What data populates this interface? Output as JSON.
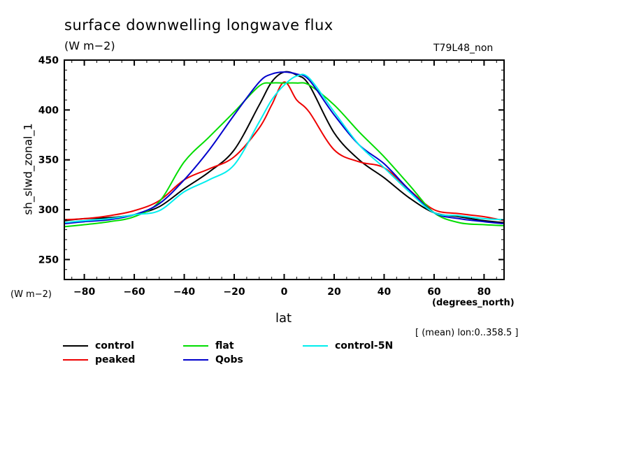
{
  "header": {
    "title": "surface downwelling longwave flux",
    "units": "(W m−2)",
    "run_label": "T79L48_non"
  },
  "axes": {
    "ylabel": "sh_slwd_zonal_1",
    "y_units": "(W m−2)",
    "xlabel": "lat",
    "x_units": "(degrees_north)",
    "region_note": "[ (mean) lon:0..358.5 ]"
  },
  "chart_data": {
    "type": "line",
    "title": "surface downwelling longwave flux",
    "subtitle": "(W m-2)",
    "xlabel": "lat",
    "ylabel": "sh_slwd_zonal_1",
    "xlim": [
      -88,
      88
    ],
    "ylim": [
      230,
      450
    ],
    "xticks": [
      -80,
      -60,
      -40,
      -20,
      0,
      20,
      40,
      60,
      80
    ],
    "xtick_labels": [
      "−80",
      "−60",
      "−40",
      "−20",
      "0",
      "20",
      "40",
      "60",
      "80"
    ],
    "yticks": [
      250,
      300,
      350,
      400,
      450
    ],
    "ytick_labels": [
      "250",
      "300",
      "350",
      "400",
      "450"
    ],
    "grid": false,
    "legend_position": "bottom",
    "x": [
      -88,
      -80,
      -70,
      -60,
      -50,
      -40,
      -30,
      -20,
      -10,
      -5,
      0,
      5,
      10,
      20,
      30,
      40,
      50,
      60,
      70,
      80,
      88
    ],
    "series": [
      {
        "name": "control",
        "color": "#000000",
        "values": [
          289,
          291,
          292,
          295,
          303,
          321,
          338,
          360,
          405,
          428,
          438,
          435,
          425,
          377,
          350,
          332,
          312,
          297,
          293,
          289,
          287
        ]
      },
      {
        "name": "peaked",
        "color": "#ee0000",
        "values": [
          290,
          291,
          294,
          299,
          309,
          330,
          341,
          353,
          382,
          405,
          428,
          410,
          398,
          360,
          348,
          342,
          320,
          300,
          296,
          293,
          289
        ]
      },
      {
        "name": "flat",
        "color": "#00dd00",
        "values": [
          283,
          285,
          288,
          293,
          308,
          348,
          373,
          398,
          424,
          427,
          427,
          427,
          425,
          405,
          378,
          353,
          325,
          297,
          287,
          285,
          284
        ]
      },
      {
        "name": "Qobs",
        "color": "#0000cc",
        "values": [
          286,
          288,
          290,
          295,
          306,
          330,
          360,
          395,
          428,
          436,
          438,
          436,
          430,
          395,
          365,
          346,
          320,
          297,
          291,
          288,
          286
        ]
      },
      {
        "name": "control-5N",
        "color": "#00eeee",
        "values": [
          287,
          289,
          291,
          295,
          299,
          318,
          330,
          345,
          388,
          410,
          425,
          434,
          432,
          398,
          365,
          342,
          318,
          297,
          294,
          291,
          290
        ]
      }
    ]
  }
}
